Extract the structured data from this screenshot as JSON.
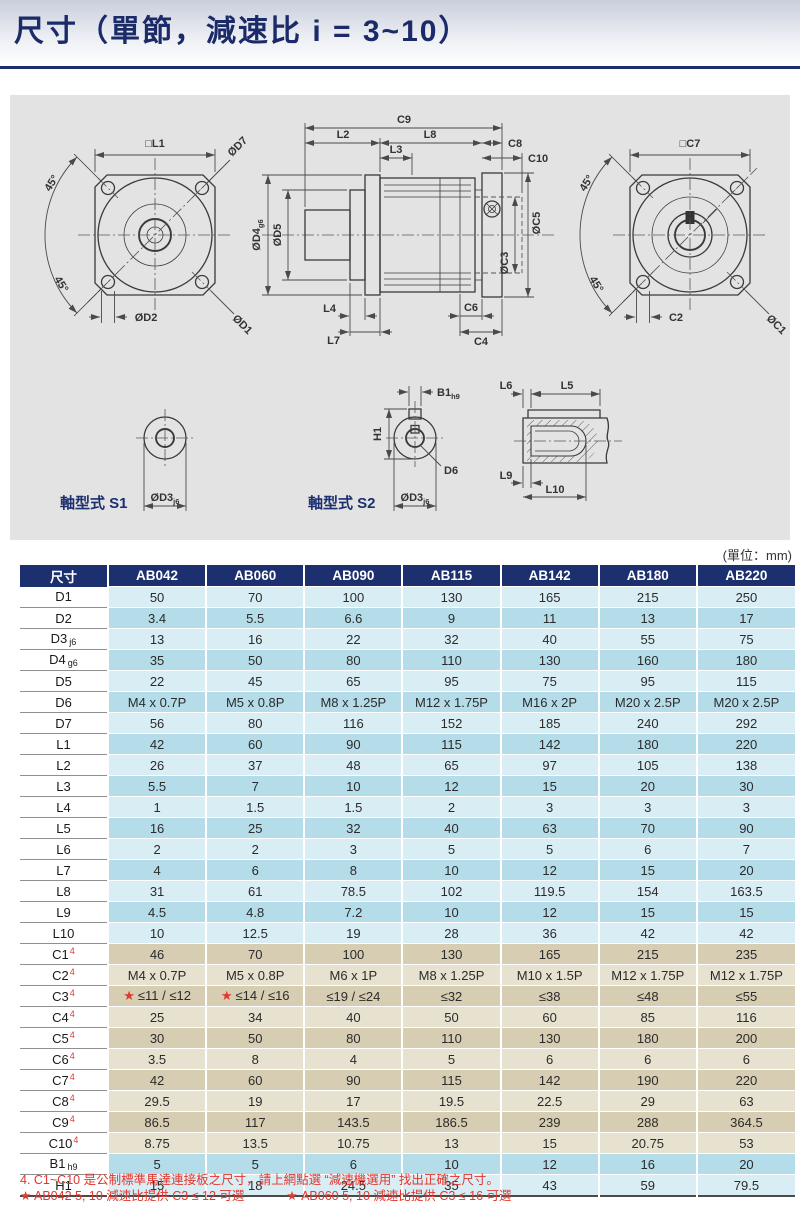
{
  "page": {
    "title": "尺寸（單節，減速比 i = 3~10）",
    "unit_note": "(單位：mm)"
  },
  "colors": {
    "navy": "#1c2f6e",
    "row_blue_light": "#d9edf5",
    "row_blue_dark": "#b4dce9",
    "row_tan_light": "#e7e1d0",
    "row_tan_dark": "#d6cdb3",
    "note_red": "#e0372e",
    "drawing_background": "#e3e3e3"
  },
  "drawing": {
    "front": {
      "l1": "□L1",
      "d7": "ØD7",
      "deg_top": "45°",
      "deg_bottom": "45°",
      "d2": "ØD2",
      "d1": "ØD1"
    },
    "side": {
      "c9": "C9",
      "l2": "L2",
      "l8": "L8",
      "c8": "C8",
      "l3": "L3",
      "c10": "C10",
      "d4": "ØD4",
      "d4_sub": "g6",
      "d5": "ØD5",
      "c5": "ØC5",
      "c3": "ØC3",
      "l4": "L4",
      "l7": "L7",
      "c6": "C6",
      "c4": "C4"
    },
    "rear": {
      "c7": "□C7",
      "deg_top": "45°",
      "deg_bottom": "45°",
      "c2": "C2",
      "c1": "ØC1"
    },
    "s1": {
      "caption": "軸型式 S1",
      "d3": "ØD3",
      "d3_sub": "j6"
    },
    "s2": {
      "caption": "軸型式 S2",
      "b1": "B1",
      "b1_sub": "h9",
      "h1": "H1",
      "d6": "D6",
      "d3": "ØD3",
      "d3_sub": "j6"
    },
    "keyview": {
      "l6": "L6",
      "l5": "L5",
      "l9": "L9",
      "l10": "L10"
    }
  },
  "table": {
    "header": [
      "尺寸",
      "AB042",
      "AB060",
      "AB090",
      "AB115",
      "AB142",
      "AB180",
      "AB220"
    ],
    "rows": [
      {
        "label": "D1",
        "sub": "",
        "sup": "",
        "group": "blue",
        "shade": "light",
        "values": [
          "50",
          "70",
          "100",
          "130",
          "165",
          "215",
          "250"
        ]
      },
      {
        "label": "D2",
        "sub": "",
        "sup": "",
        "group": "blue",
        "shade": "dark",
        "values": [
          "3.4",
          "5.5",
          "6.6",
          "9",
          "11",
          "13",
          "17"
        ]
      },
      {
        "label": "D3",
        "sub": "j6",
        "sup": "",
        "group": "blue",
        "shade": "light",
        "values": [
          "13",
          "16",
          "22",
          "32",
          "40",
          "55",
          "75"
        ]
      },
      {
        "label": "D4",
        "sub": "g6",
        "sup": "",
        "group": "blue",
        "shade": "dark",
        "values": [
          "35",
          "50",
          "80",
          "110",
          "130",
          "160",
          "180"
        ]
      },
      {
        "label": "D5",
        "sub": "",
        "sup": "",
        "group": "blue",
        "shade": "light",
        "values": [
          "22",
          "45",
          "65",
          "95",
          "75",
          "95",
          "115"
        ]
      },
      {
        "label": "D6",
        "sub": "",
        "sup": "",
        "group": "blue",
        "shade": "dark",
        "values": [
          "M4 x 0.7P",
          "M5 x 0.8P",
          "M8 x 1.25P",
          "M12 x 1.75P",
          "M16 x 2P",
          "M20 x 2.5P",
          "M20 x 2.5P"
        ]
      },
      {
        "label": "D7",
        "sub": "",
        "sup": "",
        "group": "blue",
        "shade": "light",
        "values": [
          "56",
          "80",
          "116",
          "152",
          "185",
          "240",
          "292"
        ]
      },
      {
        "label": "L1",
        "sub": "",
        "sup": "",
        "group": "blue",
        "shade": "dark",
        "values": [
          "42",
          "60",
          "90",
          "115",
          "142",
          "180",
          "220"
        ]
      },
      {
        "label": "L2",
        "sub": "",
        "sup": "",
        "group": "blue",
        "shade": "light",
        "values": [
          "26",
          "37",
          "48",
          "65",
          "97",
          "105",
          "138"
        ]
      },
      {
        "label": "L3",
        "sub": "",
        "sup": "",
        "group": "blue",
        "shade": "dark",
        "values": [
          "5.5",
          "7",
          "10",
          "12",
          "15",
          "20",
          "30"
        ]
      },
      {
        "label": "L4",
        "sub": "",
        "sup": "",
        "group": "blue",
        "shade": "light",
        "values": [
          "1",
          "1.5",
          "1.5",
          "2",
          "3",
          "3",
          "3"
        ]
      },
      {
        "label": "L5",
        "sub": "",
        "sup": "",
        "group": "blue",
        "shade": "dark",
        "values": [
          "16",
          "25",
          "32",
          "40",
          "63",
          "70",
          "90"
        ]
      },
      {
        "label": "L6",
        "sub": "",
        "sup": "",
        "group": "blue",
        "shade": "light",
        "values": [
          "2",
          "2",
          "3",
          "5",
          "5",
          "6",
          "7"
        ]
      },
      {
        "label": "L7",
        "sub": "",
        "sup": "",
        "group": "blue",
        "shade": "dark",
        "values": [
          "4",
          "6",
          "8",
          "10",
          "12",
          "15",
          "20"
        ]
      },
      {
        "label": "L8",
        "sub": "",
        "sup": "",
        "group": "blue",
        "shade": "light",
        "values": [
          "31",
          "61",
          "78.5",
          "102",
          "119.5",
          "154",
          "163.5"
        ]
      },
      {
        "label": "L9",
        "sub": "",
        "sup": "",
        "group": "blue",
        "shade": "dark",
        "values": [
          "4.5",
          "4.8",
          "7.2",
          "10",
          "12",
          "15",
          "15"
        ]
      },
      {
        "label": "L10",
        "sub": "",
        "sup": "",
        "group": "blue",
        "shade": "light",
        "values": [
          "10",
          "12.5",
          "19",
          "28",
          "36",
          "42",
          "42"
        ]
      },
      {
        "label": "C1",
        "sub": "",
        "sup": "4",
        "group": "tan",
        "shade": "dark",
        "values": [
          "46",
          "70",
          "100",
          "130",
          "165",
          "215",
          "235"
        ]
      },
      {
        "label": "C2",
        "sub": "",
        "sup": "4",
        "group": "tan",
        "shade": "light",
        "values": [
          "M4 x 0.7P",
          "M5 x 0.8P",
          "M6 x 1P",
          "M8 x 1.25P",
          "M10 x 1.5P",
          "M12 x 1.75P",
          "M12 x 1.75P"
        ]
      },
      {
        "label": "C3",
        "sub": "",
        "sup": "4",
        "group": "tan",
        "shade": "dark",
        "values": [
          "★ ≤11 / ≤12",
          "★ ≤14 / ≤16",
          "≤19 / ≤24",
          "≤32",
          "≤38",
          "≤48",
          "≤55"
        ]
      },
      {
        "label": "C4",
        "sub": "",
        "sup": "4",
        "group": "tan",
        "shade": "light",
        "values": [
          "25",
          "34",
          "40",
          "50",
          "60",
          "85",
          "116"
        ]
      },
      {
        "label": "C5",
        "sub": "",
        "sup": "4",
        "group": "tan",
        "shade": "dark",
        "values": [
          "30",
          "50",
          "80",
          "110",
          "130",
          "180",
          "200"
        ]
      },
      {
        "label": "C6",
        "sub": "",
        "sup": "4",
        "group": "tan",
        "shade": "light",
        "values": [
          "3.5",
          "8",
          "4",
          "5",
          "6",
          "6",
          "6"
        ]
      },
      {
        "label": "C7",
        "sub": "",
        "sup": "4",
        "group": "tan",
        "shade": "dark",
        "values": [
          "42",
          "60",
          "90",
          "115",
          "142",
          "190",
          "220"
        ]
      },
      {
        "label": "C8",
        "sub": "",
        "sup": "4",
        "group": "tan",
        "shade": "light",
        "values": [
          "29.5",
          "19",
          "17",
          "19.5",
          "22.5",
          "29",
          "63"
        ]
      },
      {
        "label": "C9",
        "sub": "",
        "sup": "4",
        "group": "tan",
        "shade": "dark",
        "values": [
          "86.5",
          "117",
          "143.5",
          "186.5",
          "239",
          "288",
          "364.5"
        ]
      },
      {
        "label": "C10",
        "sub": "",
        "sup": "4",
        "group": "tan",
        "shade": "light",
        "values": [
          "8.75",
          "13.5",
          "10.75",
          "13",
          "15",
          "20.75",
          "53"
        ]
      },
      {
        "label": "B1",
        "sub": "h9",
        "sup": "",
        "group": "blue",
        "shade": "dark",
        "values": [
          "5",
          "5",
          "6",
          "10",
          "12",
          "16",
          "20"
        ]
      },
      {
        "label": "H1",
        "sub": "",
        "sup": "",
        "group": "blue",
        "shade": "light",
        "values": [
          "15",
          "18",
          "24.5",
          "35",
          "43",
          "59",
          "79.5"
        ]
      }
    ]
  },
  "footnotes": {
    "note4": "4. C1~C10 是公制標準馬達連接板之尺寸，請上網點選 “減速機選用” 找出正確之尺寸。",
    "star1": "★ AB042 5, 10 減速比提供 C3 ≤ 12 可選",
    "star2": "★ AB060 5, 10 減速比提供 C3 ≤ 16 可選"
  }
}
